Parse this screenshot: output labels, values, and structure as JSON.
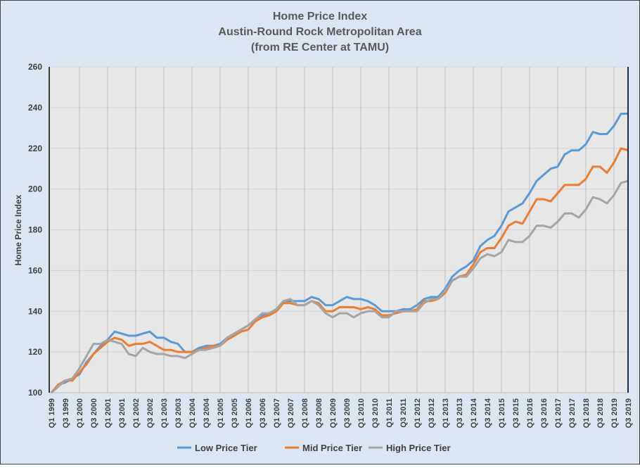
{
  "chart_data": {
    "type": "line",
    "title": [
      "Home Price Index",
      "Austin-Round Rock Metropolitan Area",
      "(from RE Center at TAMU)"
    ],
    "xlabel": "",
    "ylabel": "Home Price Index",
    "ylim": [
      100,
      260
    ],
    "yticks": [
      100,
      120,
      140,
      160,
      180,
      200,
      220,
      240,
      260
    ],
    "grid": true,
    "legend_position": "bottom",
    "x_start_year": 1999,
    "x_count": 83,
    "xtick_labels": [
      "Q1 1999",
      "Q3 1999",
      "Q1 2000",
      "Q3 2000",
      "Q1 2001",
      "Q3 2001",
      "Q1 2002",
      "Q3 2002",
      "Q1 2003",
      "Q3 2003",
      "Q1 2004",
      "Q3 2004",
      "Q1 2005",
      "Q3 2005",
      "Q1 2006",
      "Q3 2006",
      "Q1 2007",
      "Q3 2007",
      "Q1 2008",
      "Q3 2008",
      "Q1 2009",
      "Q3 2009",
      "Q1 2010",
      "Q3 2010",
      "Q1 2011",
      "Q3 2011",
      "Q1 2012",
      "Q3 2012",
      "Q1 2013",
      "Q3 2013",
      "Q1 2014",
      "Q3 2014",
      "Q1 2015",
      "Q3 2015",
      "Q1 2016",
      "Q3 2016",
      "Q1 2017",
      "Q3 2017",
      "Q1 2018",
      "Q3 2018",
      "Q1 2019",
      "Q3 2019"
    ],
    "series": [
      {
        "name": "Low Price Tier",
        "color": "#5b9bd5",
        "values": [
          100,
          104,
          105,
          107,
          109,
          115,
          119,
          123,
          126,
          130,
          129,
          128,
          128,
          129,
          130,
          127,
          127,
          125,
          124,
          120,
          120,
          122,
          123,
          123,
          124,
          127,
          129,
          131,
          133,
          136,
          138,
          139,
          141,
          145,
          145,
          145,
          145,
          147,
          146,
          143,
          143,
          145,
          147,
          146,
          146,
          145,
          143,
          140,
          140,
          140,
          141,
          141,
          143,
          146,
          147,
          147,
          151,
          157,
          160,
          162,
          165,
          172,
          175,
          177,
          182,
          189,
          191,
          193,
          198,
          204,
          207,
          210,
          211,
          217,
          219,
          219,
          222,
          228,
          227,
          227,
          231,
          237,
          237
        ]
      },
      {
        "name": "Mid Price Tier",
        "color": "#ed7d31",
        "values": [
          100,
          104,
          106,
          106,
          110,
          114,
          119,
          122,
          125,
          127,
          126,
          123,
          124,
          124,
          125,
          123,
          121,
          121,
          120,
          120,
          120,
          121,
          122,
          123,
          123,
          126,
          128,
          130,
          131,
          135,
          137,
          138,
          140,
          144,
          144,
          143,
          143,
          145,
          144,
          140,
          140,
          142,
          142,
          142,
          141,
          142,
          141,
          138,
          138,
          139,
          140,
          140,
          141,
          145,
          145,
          146,
          149,
          155,
          157,
          158,
          163,
          169,
          171,
          171,
          176,
          182,
          184,
          183,
          189,
          195,
          195,
          194,
          198,
          202,
          202,
          202,
          205,
          211,
          211,
          208,
          213,
          220,
          219
        ]
      },
      {
        "name": "High Price Tier",
        "color": "#a5a5a5",
        "values": [
          100,
          103,
          106,
          107,
          112,
          118,
          124,
          124,
          126,
          125,
          124,
          119,
          118,
          122,
          120,
          119,
          119,
          118,
          118,
          117,
          119,
          121,
          121,
          122,
          123,
          127,
          129,
          131,
          133,
          136,
          139,
          139,
          141,
          145,
          146,
          143,
          143,
          145,
          143,
          139,
          137,
          139,
          139,
          137,
          139,
          140,
          140,
          137,
          137,
          140,
          140,
          140,
          140,
          144,
          146,
          146,
          150,
          155,
          157,
          157,
          161,
          166,
          168,
          167,
          169,
          175,
          174,
          174,
          177,
          182,
          182,
          181,
          184,
          188,
          188,
          186,
          190,
          196,
          195,
          193,
          197,
          203,
          204
        ]
      }
    ]
  }
}
